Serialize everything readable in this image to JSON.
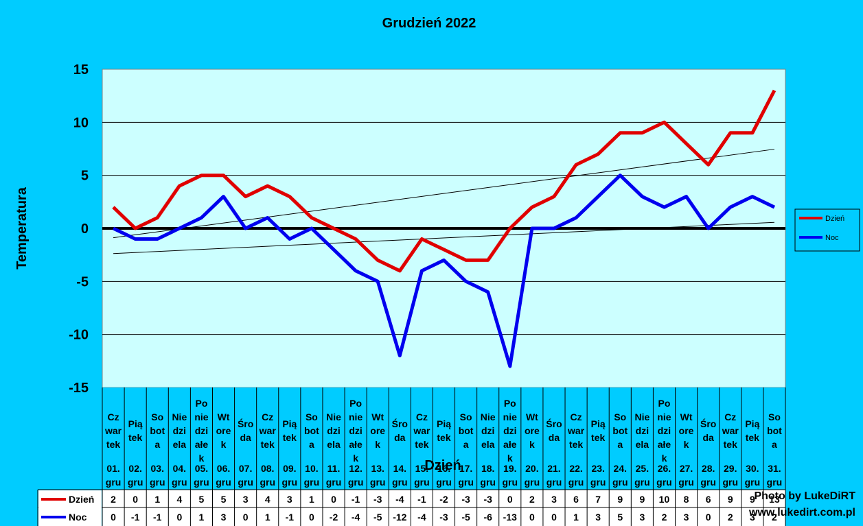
{
  "chart_data": {
    "type": "line",
    "title": "Grudzień 2022",
    "xlabel": "Dzień",
    "ylabel": "Temperatura",
    "ylim": [
      -15,
      15
    ],
    "yticks": [
      15,
      10,
      5,
      0,
      -5,
      -10,
      -15
    ],
    "categories": [
      {
        "day": "Czwartek",
        "split": [
          "Cz",
          "war",
          "tek"
        ],
        "date": [
          "01.",
          "gru"
        ]
      },
      {
        "day": "Piątek",
        "split": [
          "Pią",
          "tek"
        ],
        "date": [
          "02.",
          "gru"
        ]
      },
      {
        "day": "Sobota",
        "split": [
          "So",
          "bot",
          "a"
        ],
        "date": [
          "03.",
          "gru"
        ]
      },
      {
        "day": "Niedziela",
        "split": [
          "Nie",
          "dzi",
          "ela"
        ],
        "date": [
          "04.",
          "gru"
        ]
      },
      {
        "day": "Poniedziałek",
        "split": [
          "Po",
          "nie",
          "dzi",
          "ałe",
          "k"
        ],
        "date": [
          "05.",
          "gru"
        ]
      },
      {
        "day": "Wtorek",
        "split": [
          "Wt",
          "ore",
          "k"
        ],
        "date": [
          "06.",
          "gru"
        ]
      },
      {
        "day": "Środa",
        "split": [
          "Śro",
          "da"
        ],
        "date": [
          "07.",
          "gru"
        ]
      },
      {
        "day": "Czwartek",
        "split": [
          "Cz",
          "war",
          "tek"
        ],
        "date": [
          "08.",
          "gru"
        ]
      },
      {
        "day": "Piątek",
        "split": [
          "Pią",
          "tek"
        ],
        "date": [
          "09.",
          "gru"
        ]
      },
      {
        "day": "Sobota",
        "split": [
          "So",
          "bot",
          "a"
        ],
        "date": [
          "10.",
          "gru"
        ]
      },
      {
        "day": "Niedziela",
        "split": [
          "Nie",
          "dzi",
          "ela"
        ],
        "date": [
          "11.",
          "gru"
        ]
      },
      {
        "day": "Poniedziałek",
        "split": [
          "Po",
          "nie",
          "dzi",
          "ałe",
          "k"
        ],
        "date": [
          "12.",
          "gru"
        ]
      },
      {
        "day": "Wtorek",
        "split": [
          "Wt",
          "ore",
          "k"
        ],
        "date": [
          "13.",
          "gru"
        ]
      },
      {
        "day": "Środa",
        "split": [
          "Śro",
          "da"
        ],
        "date": [
          "14.",
          "gru"
        ]
      },
      {
        "day": "Czwartek",
        "split": [
          "Cz",
          "war",
          "tek"
        ],
        "date": [
          "15.",
          "gru"
        ]
      },
      {
        "day": "Piątek",
        "split": [
          "Pią",
          "tek"
        ],
        "date": [
          "16.",
          "gru"
        ]
      },
      {
        "day": "Sobota",
        "split": [
          "So",
          "bot",
          "a"
        ],
        "date": [
          "17.",
          "gru"
        ]
      },
      {
        "day": "Niedziela",
        "split": [
          "Nie",
          "dzi",
          "ela"
        ],
        "date": [
          "18.",
          "gru"
        ]
      },
      {
        "day": "Poniedziałek",
        "split": [
          "Po",
          "nie",
          "dzi",
          "ałe",
          "k"
        ],
        "date": [
          "19.",
          "gru"
        ]
      },
      {
        "day": "Wtorek",
        "split": [
          "Wt",
          "ore",
          "k"
        ],
        "date": [
          "20.",
          "gru"
        ]
      },
      {
        "day": "Środa",
        "split": [
          "Śro",
          "da"
        ],
        "date": [
          "21.",
          "gru"
        ]
      },
      {
        "day": "Czwartek",
        "split": [
          "Cz",
          "war",
          "tek"
        ],
        "date": [
          "22.",
          "gru"
        ]
      },
      {
        "day": "Piątek",
        "split": [
          "Pią",
          "tek"
        ],
        "date": [
          "23.",
          "gru"
        ]
      },
      {
        "day": "Sobota",
        "split": [
          "So",
          "bot",
          "a"
        ],
        "date": [
          "24.",
          "gru"
        ]
      },
      {
        "day": "Niedziela",
        "split": [
          "Nie",
          "dzi",
          "ela"
        ],
        "date": [
          "25.",
          "gru"
        ]
      },
      {
        "day": "Poniedziałek",
        "split": [
          "Po",
          "nie",
          "dzi",
          "ałe",
          "k"
        ],
        "date": [
          "26.",
          "gru"
        ]
      },
      {
        "day": "Wtorek",
        "split": [
          "Wt",
          "ore",
          "k"
        ],
        "date": [
          "27.",
          "gru"
        ]
      },
      {
        "day": "Środa",
        "split": [
          "Śro",
          "da"
        ],
        "date": [
          "28.",
          "gru"
        ]
      },
      {
        "day": "Czwartek",
        "split": [
          "Cz",
          "war",
          "tek"
        ],
        "date": [
          "29.",
          "gru"
        ]
      },
      {
        "day": "Piątek",
        "split": [
          "Pią",
          "tek"
        ],
        "date": [
          "30.",
          "gru"
        ]
      },
      {
        "day": "Sobota",
        "split": [
          "So",
          "bot",
          "a"
        ],
        "date": [
          "31.",
          "gru"
        ]
      }
    ],
    "series": [
      {
        "name": "Dzień",
        "color": "#e00000",
        "values": [
          2,
          0,
          1,
          4,
          5,
          5,
          3,
          4,
          3,
          1,
          0,
          -1,
          -3,
          -4,
          -1,
          -2,
          -3,
          -3,
          0,
          2,
          3,
          6,
          7,
          9,
          9,
          10,
          8,
          6,
          9,
          9,
          13
        ]
      },
      {
        "name": "Noc",
        "color": "#0000ee",
        "values": [
          0,
          -1,
          -1,
          0,
          1,
          3,
          0,
          1,
          -1,
          0,
          -2,
          -4,
          -5,
          -12,
          -4,
          -3,
          -5,
          -6,
          -13,
          0,
          0,
          1,
          3,
          5,
          3,
          2,
          3,
          0,
          2,
          3,
          2
        ]
      }
    ],
    "trendlines": true,
    "grid": true,
    "legend_position": "right",
    "data_table": true,
    "colors": {
      "background": "#00ccff",
      "plot_area": "#ccffff"
    }
  },
  "credit": {
    "line1": "Photo by LukeDiRT",
    "line2": "www.lukedirt.com.pl"
  }
}
